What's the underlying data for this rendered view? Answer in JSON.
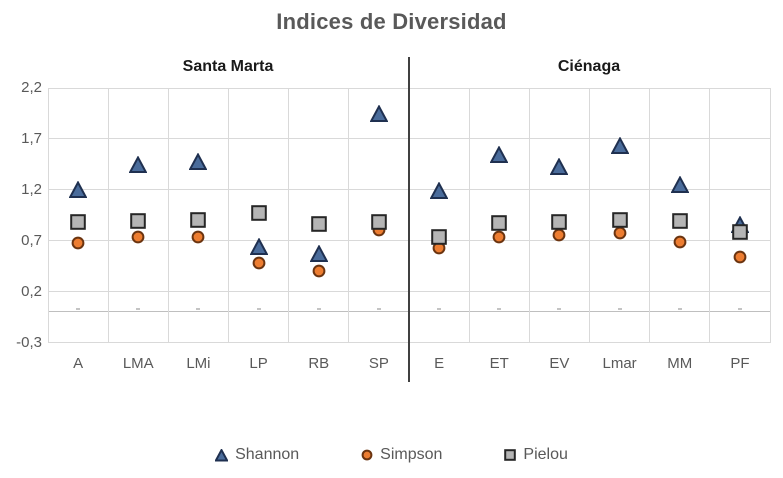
{
  "title": "Indices de Diversidad",
  "sections": {
    "left": "Santa Marta",
    "right": "Ciénaga"
  },
  "legend": {
    "items": [
      "Shannon",
      "Simpson",
      "Pielou"
    ]
  },
  "chart_data": {
    "type": "scatter",
    "title": "Indices de Diversidad",
    "section_groups": [
      {
        "label": "Santa Marta",
        "categories": [
          "A",
          "LMA",
          "LMi",
          "LP",
          "RB",
          "SP"
        ]
      },
      {
        "label": "Ciénaga",
        "categories": [
          "E",
          "ET",
          "EV",
          "Lmar",
          "MM",
          "PF"
        ]
      }
    ],
    "categories": [
      "A",
      "LMA",
      "LMi",
      "LP",
      "RB",
      "SP",
      "E",
      "ET",
      "EV",
      "Lmar",
      "MM",
      "PF"
    ],
    "series": [
      {
        "name": "Shannon",
        "marker": "triangle",
        "fill": "#4A6C9B",
        "stroke": "#1F3050",
        "values": [
          1.21,
          1.45,
          1.48,
          0.65,
          0.58,
          1.95,
          1.2,
          1.55,
          1.43,
          1.64,
          1.26,
          0.86
        ]
      },
      {
        "name": "Simpson",
        "marker": "circle",
        "fill": "#ED7D31",
        "stroke": "#6B3410",
        "values": [
          0.68,
          0.74,
          0.74,
          0.48,
          0.4,
          0.81,
          0.63,
          0.74,
          0.76,
          0.78,
          0.69,
          0.54
        ]
      },
      {
        "name": "Pielou",
        "marker": "square",
        "fill": "#B5B5B5",
        "stroke": "#262626",
        "values": [
          0.88,
          0.89,
          0.9,
          0.97,
          0.86,
          0.88,
          0.74,
          0.87,
          0.88,
          0.9,
          0.89,
          0.79
        ]
      }
    ],
    "ylim": [
      -0.3,
      2.2
    ],
    "yticks": [
      {
        "value": 2.2,
        "label": "2,2"
      },
      {
        "value": 1.7,
        "label": "1,7"
      },
      {
        "value": 1.2,
        "label": "1,2"
      },
      {
        "value": 0.7,
        "label": "0,7"
      },
      {
        "value": 0.2,
        "label": "0,2"
      },
      {
        "value": -0.3,
        "label": "-0,3"
      }
    ],
    "grid": true,
    "zero_axis": true,
    "legend_position": "bottom"
  },
  "colors": {
    "title": "#595959",
    "section_label": "#1A1A1A",
    "axis_label": "#595959",
    "gridline": "#D9D9D9",
    "zero_line": "#BFBFBF",
    "divider": "#404040",
    "background": "#FFFFFF"
  }
}
